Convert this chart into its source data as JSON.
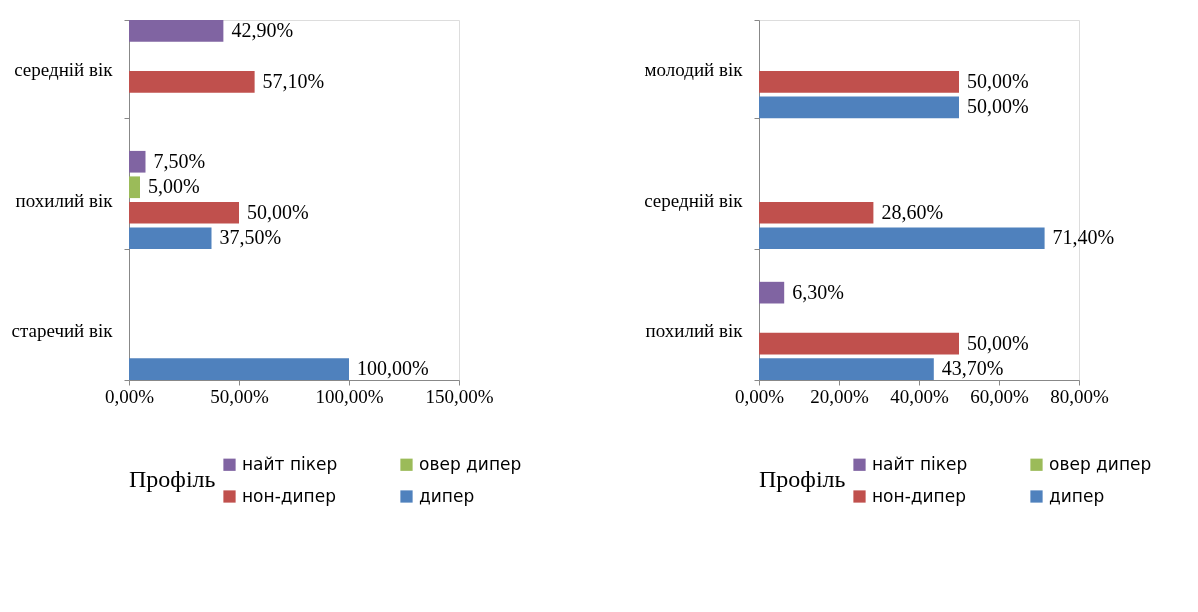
{
  "chart_data": [
    {
      "type": "bar",
      "orientation": "horizontal",
      "categories": [
        "середній вік",
        "похилий вік",
        "старечий вік"
      ],
      "series": [
        {
          "name": "найт пікер",
          "color": "#8064a2",
          "values": [
            42.9,
            7.5,
            null
          ],
          "value_labels": [
            "42,90%",
            "7,50%",
            null
          ]
        },
        {
          "name": "овер дипер",
          "color": "#9bbb59",
          "values": [
            null,
            5.0,
            null
          ],
          "value_labels": [
            null,
            "5,00%",
            null
          ]
        },
        {
          "name": "нон-дипер",
          "color": "#c0504d",
          "values": [
            57.1,
            50.0,
            null
          ],
          "value_labels": [
            "57,10%",
            "50,00%",
            null
          ]
        },
        {
          "name": "дипер",
          "color": "#4f81bd",
          "values": [
            null,
            37.5,
            100.0
          ],
          "value_labels": [
            null,
            "37,50%",
            "100,00%"
          ]
        }
      ],
      "xlim": [
        0,
        150
      ],
      "xticks": [
        {
          "value": 0,
          "label": "0,00%"
        },
        {
          "value": 50,
          "label": "50,00%"
        },
        {
          "value": 100,
          "label": "100,00%"
        },
        {
          "value": 150,
          "label": "150,00%"
        }
      ],
      "legend": "bottom",
      "legend_title": "Профіль"
    },
    {
      "type": "bar",
      "orientation": "horizontal",
      "categories": [
        "молодий вік",
        "середній вік",
        "похилий вік"
      ],
      "series": [
        {
          "name": "найт пікер",
          "color": "#8064a2",
          "values": [
            null,
            null,
            6.3
          ],
          "value_labels": [
            null,
            null,
            "6,30%"
          ]
        },
        {
          "name": "овер дипер",
          "color": "#9bbb59",
          "values": [
            null,
            null,
            null
          ],
          "value_labels": [
            null,
            null,
            null
          ]
        },
        {
          "name": "нон-дипер",
          "color": "#c0504d",
          "values": [
            50.0,
            28.6,
            50.0
          ],
          "value_labels": [
            "50,00%",
            "28,60%",
            "50,00%"
          ]
        },
        {
          "name": "дипер",
          "color": "#4f81bd",
          "values": [
            50.0,
            71.4,
            43.7
          ],
          "value_labels": [
            "50,00%",
            "71,40%",
            "43,70%"
          ]
        }
      ],
      "xlim": [
        0,
        80
      ],
      "xticks": [
        {
          "value": 0,
          "label": "0,00%"
        },
        {
          "value": 20,
          "label": "20,00%"
        },
        {
          "value": 40,
          "label": "40,00%"
        },
        {
          "value": 60,
          "label": "60,00%"
        },
        {
          "value": 80,
          "label": "80,00%"
        }
      ],
      "legend": "bottom",
      "legend_title": "Профіль"
    }
  ]
}
